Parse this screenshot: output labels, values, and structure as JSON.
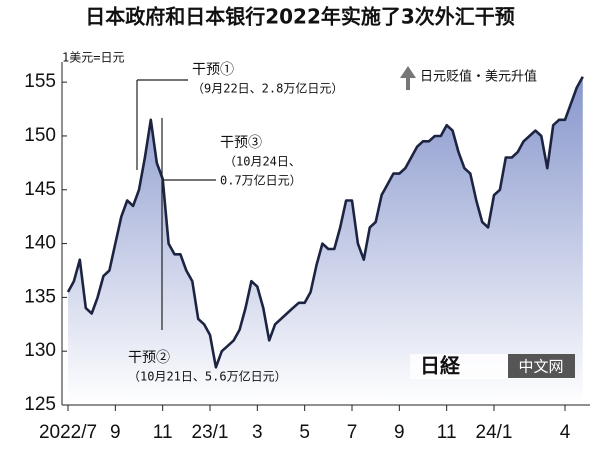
{
  "chart_data": {
    "type": "line",
    "title": "日本政府和日本银行2022年实施了3次外汇干预",
    "categories": [
      "2022/7",
      null,
      null,
      null,
      null,
      null,
      null,
      null,
      "9",
      null,
      null,
      null,
      null,
      null,
      null,
      null,
      "11",
      null,
      null,
      null,
      null,
      null,
      null,
      null,
      "23/1",
      null,
      null,
      null,
      null,
      null,
      null,
      null,
      "3",
      null,
      null,
      null,
      null,
      null,
      null,
      null,
      "5",
      null,
      null,
      null,
      null,
      null,
      null,
      null,
      "7",
      null,
      null,
      null,
      null,
      null,
      null,
      null,
      "9",
      null,
      null,
      null,
      null,
      null,
      null,
      null,
      "11",
      null,
      null,
      null,
      null,
      null,
      null,
      null,
      "24/1",
      null,
      null,
      null,
      null,
      null,
      null,
      null,
      null,
      null,
      null,
      null,
      "4",
      null,
      null,
      null
    ],
    "values": [
      135.5,
      136.5,
      138.5,
      134,
      133.5,
      135,
      137,
      137.5,
      140,
      142.5,
      144,
      143.5,
      145,
      148,
      151.5,
      147.5,
      146,
      140,
      139,
      139,
      137.5,
      136.5,
      133,
      132.5,
      131.5,
      128.5,
      130,
      130.5,
      131,
      132,
      134,
      136.5,
      136,
      134,
      131,
      132.5,
      133,
      133.5,
      134,
      134.5,
      134.5,
      135.5,
      138,
      140,
      139.5,
      139.5,
      141.5,
      144,
      144,
      140,
      138.5,
      141.5,
      142,
      144.5,
      145.5,
      146.5,
      146.5,
      147,
      148,
      149,
      149.5,
      149.5,
      150,
      150,
      151,
      150.5,
      148.5,
      147,
      146.5,
      144,
      142,
      141.5,
      144.5,
      145,
      148,
      148,
      148.5,
      149.5,
      150,
      150.5,
      150,
      147,
      151,
      151.5,
      151.5,
      153,
      154.5,
      155.5
    ],
    "color": "#1c2442",
    "ylim": [
      125,
      156.5
    ],
    "yticks": [
      125,
      130,
      135,
      140,
      145,
      150,
      155
    ],
    "annotations": [
      "1美元=日元",
      "干预①",
      "（9月22日、2.8万亿日元）",
      "干预③",
      "（10月24日、",
      "0.7万亿日元）",
      "干预②",
      "（10月21日、5.6万亿日元）",
      "日元贬值・美元升值",
      "日経",
      "中文网"
    ]
  }
}
